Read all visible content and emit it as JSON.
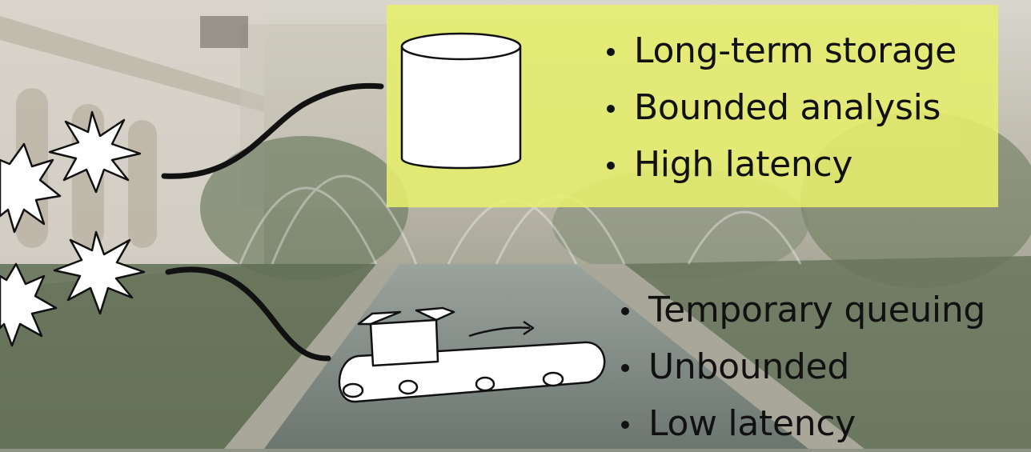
{
  "batch": {
    "bullets": [
      "Long-term storage",
      "Bounded analysis",
      "High latency"
    ]
  },
  "stream": {
    "bullets": [
      "Temporary queuing",
      "Unbounded",
      "Low latency"
    ]
  },
  "colors": {
    "highlight": "#e6ee6c",
    "ink": "#111111",
    "paper": "#ffffff"
  },
  "icons": [
    "event-burst-icon",
    "database-cylinder-icon",
    "conveyor-belt-icon"
  ]
}
